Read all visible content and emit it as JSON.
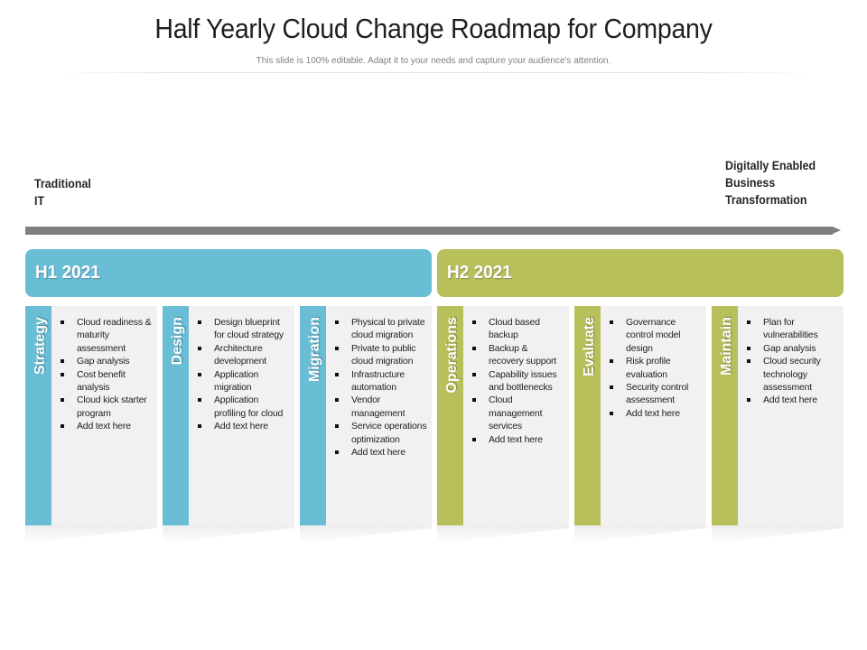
{
  "title": "Half Yearly Cloud Change Roadmap for Company",
  "subtitle": "This slide is 100% editable. Adapt it to your needs and capture your audience's attention.",
  "timeline": {
    "start_label": "Traditional\nIT",
    "end_label": "Digitally Enabled\nBusiness\nTransformation"
  },
  "halves": [
    {
      "label": "H1 2021",
      "color": "#69bed6"
    },
    {
      "label": "H2 2021",
      "color": "#b8c05c"
    }
  ],
  "phases": [
    {
      "name": "Strategy",
      "half": "H1 2021",
      "items": [
        "Cloud readiness & maturity assessment",
        "Gap analysis",
        "Cost benefit analysis",
        "Cloud kick starter program",
        "Add text here"
      ]
    },
    {
      "name": "Design",
      "half": "H1 2021",
      "items": [
        "Design blueprint for cloud strategy",
        "Architecture development",
        "Application migration",
        "Application profiling for cloud",
        "Add text here"
      ]
    },
    {
      "name": "Migration",
      "half": "H1 2021",
      "items": [
        "Physical to private cloud migration",
        "Private to public cloud migration",
        "Infrastructure automation",
        "Vendor management",
        "Service operations optimization",
        "Add text here"
      ]
    },
    {
      "name": "Operations",
      "half": "H2 2021",
      "items": [
        "Cloud based backup",
        "Backup & recovery support",
        "Capability issues and bottlenecks",
        "Cloud management services",
        "Add text here"
      ]
    },
    {
      "name": "Evaluate",
      "half": "H2 2021",
      "items": [
        "Governance control model design",
        "Risk profile evaluation",
        "Security control assessment",
        "Add text here"
      ]
    },
    {
      "name": "Maintain",
      "half": "H2 2021",
      "items": [
        "Plan for vulnerabilities",
        "Gap analysis",
        "Cloud security technology assessment",
        "Add text here"
      ]
    }
  ]
}
